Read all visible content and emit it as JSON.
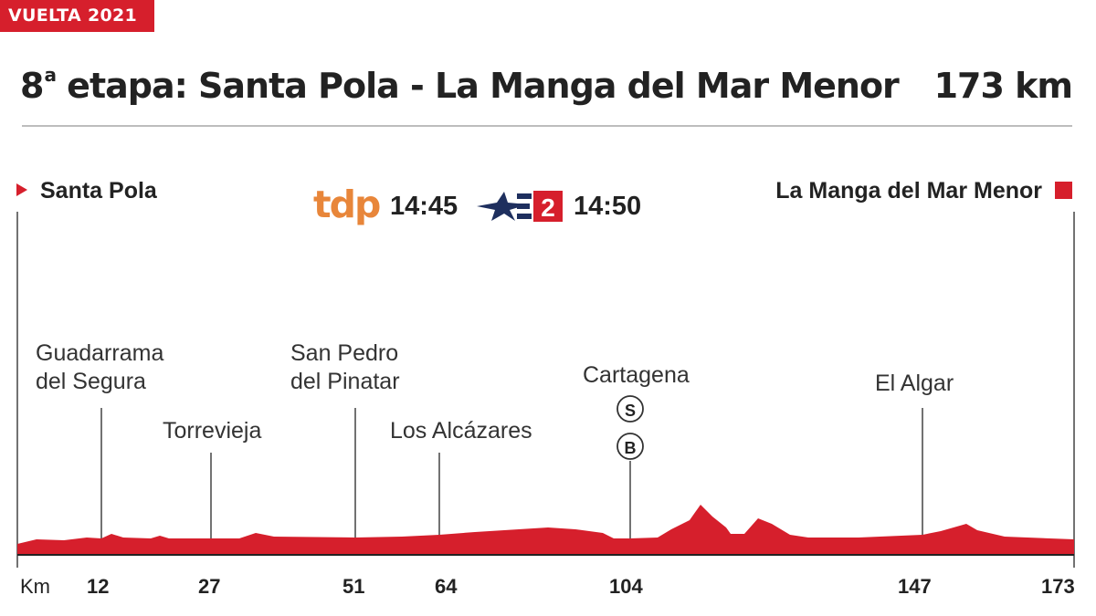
{
  "tag": "VUELTA 2021",
  "title_prefix": "8",
  "title_sup": "a",
  "title_rest": " etapa: Santa Pola - La Manga del Mar Menor",
  "distance": "173 km",
  "start": "Santa Pola",
  "finish": "La Manga del Mar Menor",
  "broadcast": {
    "tdp_label": "tdp",
    "tdp_time": "14:45",
    "tve2_number": "2",
    "tve2_time": "14:50"
  },
  "places": {
    "guadarrama_line1": "Guadarrama",
    "guadarrama_line2": "del Segura",
    "torrevieja": "Torrevieja",
    "sanpedro_line1": "San Pedro",
    "sanpedro_line2": "del Pinatar",
    "losalcazares": "Los Alcázares",
    "cartagena": "Cartagena",
    "elalgar": "El Algar"
  },
  "markers": {
    "sprint": "S",
    "bonus": "B"
  },
  "km_label": "Km",
  "km_marks": [
    "12",
    "27",
    "51",
    "64",
    "104",
    "147",
    "173"
  ],
  "colors": {
    "accent": "#d61f2c",
    "tdp": "#e8863a",
    "tve_blue": "#1e2f5e"
  }
}
